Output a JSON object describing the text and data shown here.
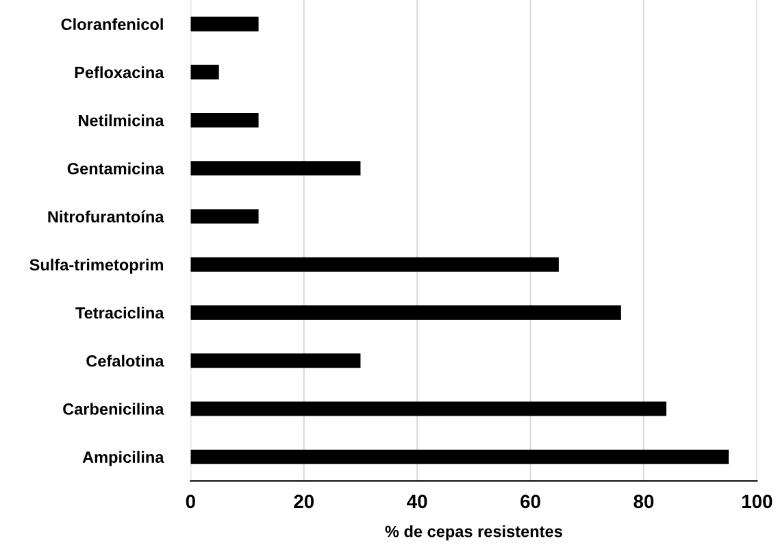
{
  "chart_data": {
    "type": "bar",
    "orientation": "horizontal",
    "xlabel": "% de cepas resistentes",
    "categories": [
      "Cloranfenicol",
      "Pefloxacina",
      "Netilmicina",
      "Gentamicina",
      "Nitrofurantoína",
      "Sulfa-trimetoprim",
      "Tetraciclina",
      "Cefalotina",
      "Carbenicilina",
      "Ampicilina"
    ],
    "values": [
      12,
      5,
      12,
      30,
      12,
      65,
      76,
      30,
      84,
      95
    ],
    "color": "#000000",
    "xlim": [
      0,
      100
    ],
    "xticks": [
      0,
      20,
      40,
      60,
      80,
      100
    ],
    "grid": "x"
  }
}
